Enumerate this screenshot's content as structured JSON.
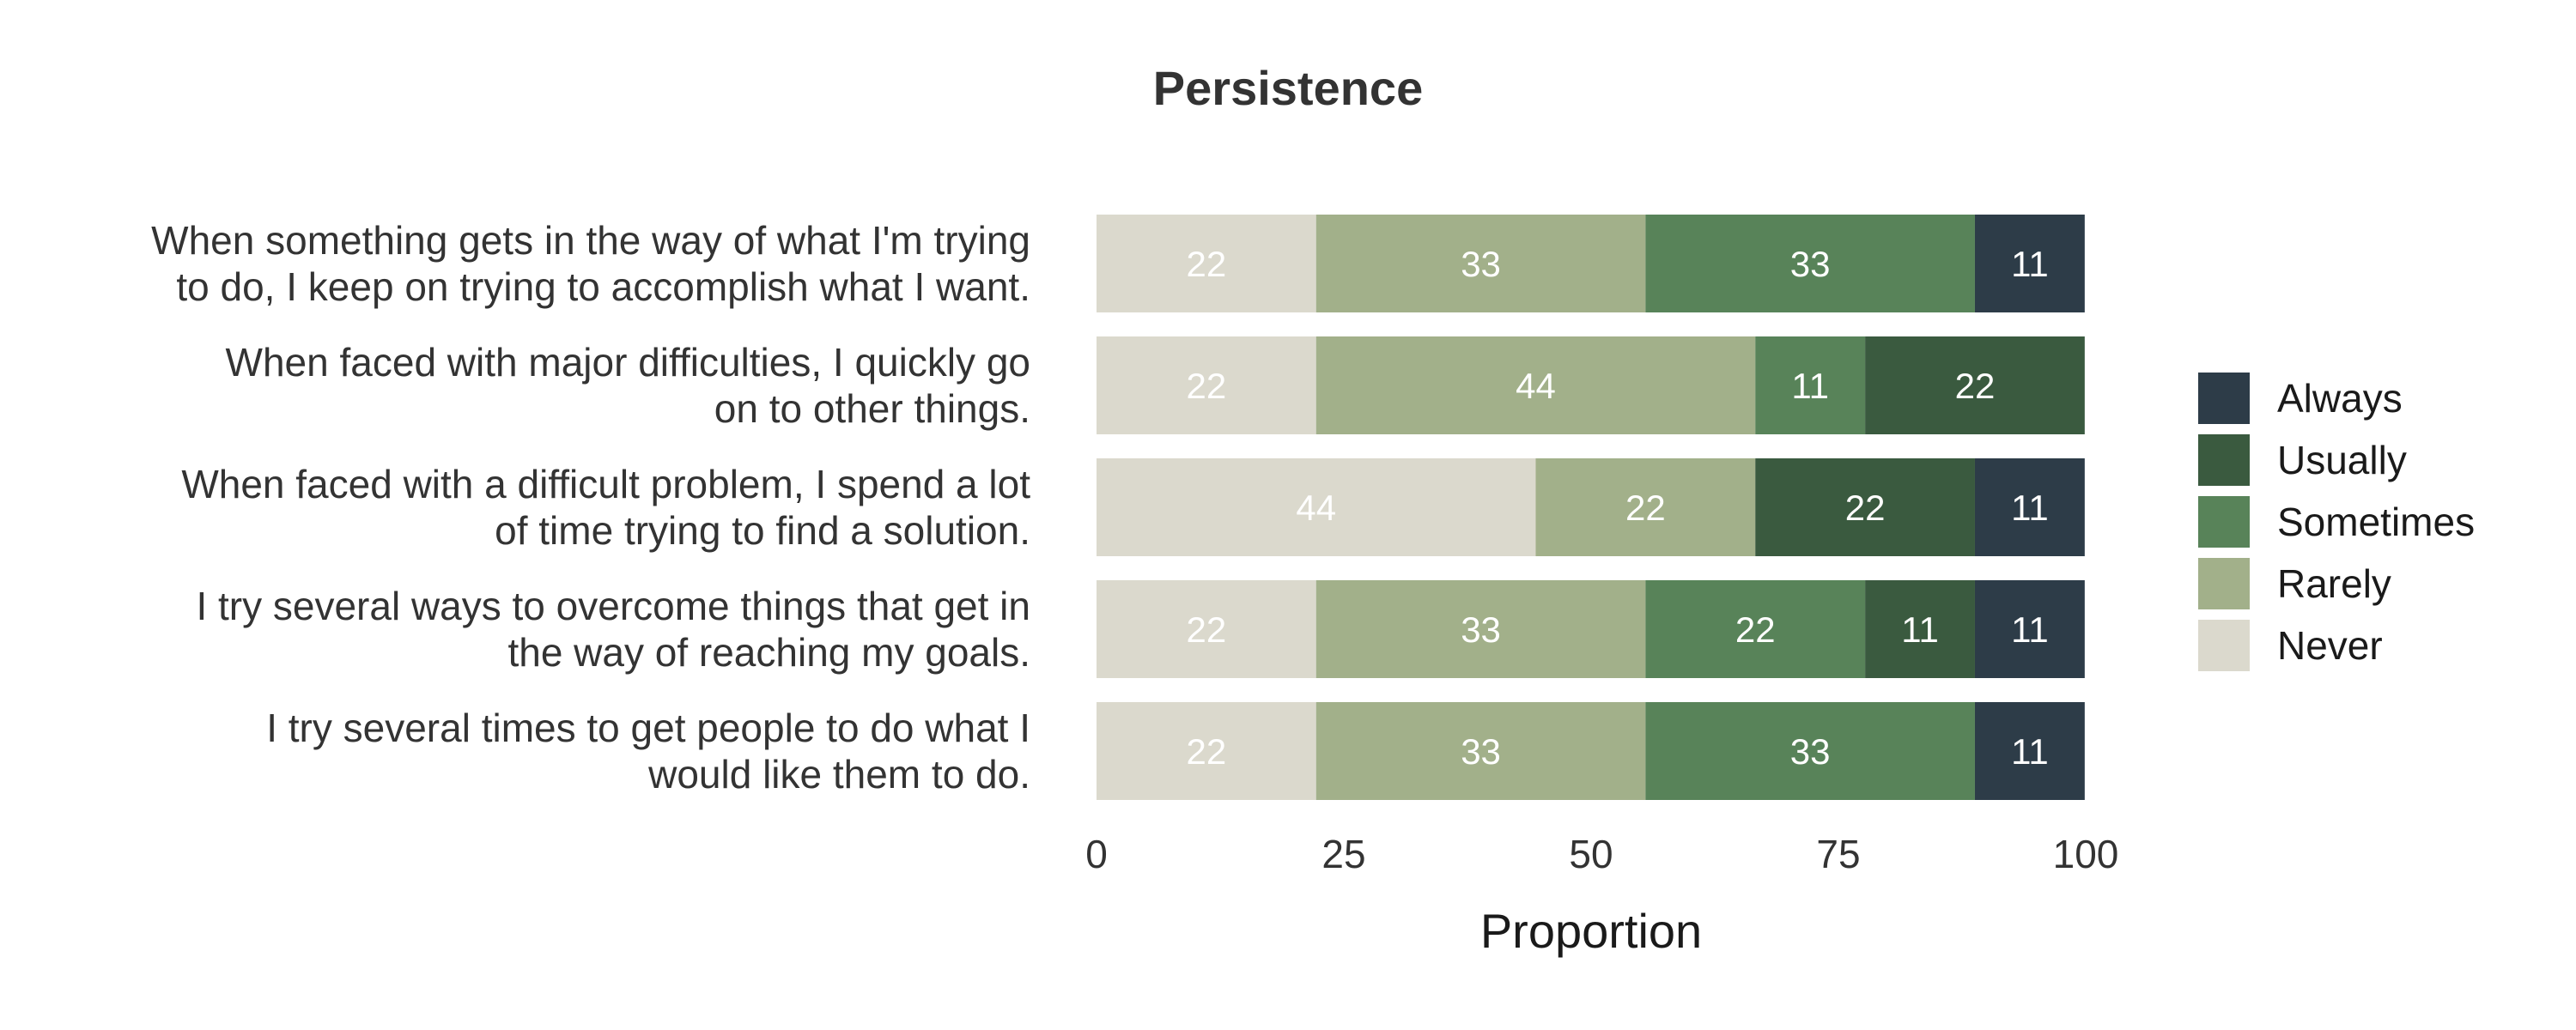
{
  "chart_data": {
    "type": "bar",
    "orientation": "horizontal",
    "stacked": true,
    "title": "Persistence",
    "xlabel": "Proportion",
    "ylabel": "",
    "xlim": [
      0,
      100
    ],
    "x_ticks": [
      "0",
      "25",
      "50",
      "75",
      "100"
    ],
    "categories": [
      "When something gets in the way of what I'm trying to do, I keep on trying to accomplish what I want.",
      "When faced with major difficulties, I quickly go on to other things.",
      "When faced with a difficult problem, I spend a lot of time trying to find a solution.",
      "I try several ways to overcome things that get in the way of reaching my goals.",
      "I try several times to get people to do what I would like them to do."
    ],
    "category_lines": [
      [
        "When something gets in the way of what I'm trying",
        "to do, I keep on trying to accomplish what I want."
      ],
      [
        "When faced with major difficulties, I quickly go",
        "on to other things."
      ],
      [
        "When faced with a difficult problem, I spend a lot",
        "of time trying to find a solution."
      ],
      [
        "I try several ways to overcome things that get in",
        "the way of reaching my goals."
      ],
      [
        "I try several times to get people to do what I",
        "would like them to do."
      ]
    ],
    "series": [
      {
        "name": "Never",
        "color": "#dbd9cd",
        "values": [
          22.2,
          22.2,
          44.4,
          22.2,
          22.2
        ],
        "labels": [
          "22",
          "22",
          "44",
          "22",
          "22"
        ]
      },
      {
        "name": "Rarely",
        "color": "#a2b08a",
        "values": [
          33.3,
          44.4,
          22.2,
          33.3,
          33.3
        ],
        "labels": [
          "33",
          "44",
          "22",
          "33",
          "33"
        ]
      },
      {
        "name": "Sometimes",
        "color": "#588359",
        "values": [
          33.3,
          11.1,
          0,
          22.2,
          33.3
        ],
        "labels": [
          "33",
          "11",
          "",
          "22",
          "33"
        ]
      },
      {
        "name": "Usually",
        "color": "#3a5a3f",
        "values": [
          0,
          22.2,
          22.2,
          11.1,
          0
        ],
        "labels": [
          "",
          "22",
          "22",
          "11",
          ""
        ]
      },
      {
        "name": "Always",
        "color": "#2d3c48",
        "values": [
          11.1,
          0,
          11.1,
          11.1,
          11.1
        ],
        "labels": [
          "11",
          "",
          "11",
          "11",
          "11"
        ]
      }
    ],
    "legend_order": [
      "Always",
      "Usually",
      "Sometimes",
      "Rarely",
      "Never"
    ],
    "legend_position": "right",
    "grid": false
  }
}
